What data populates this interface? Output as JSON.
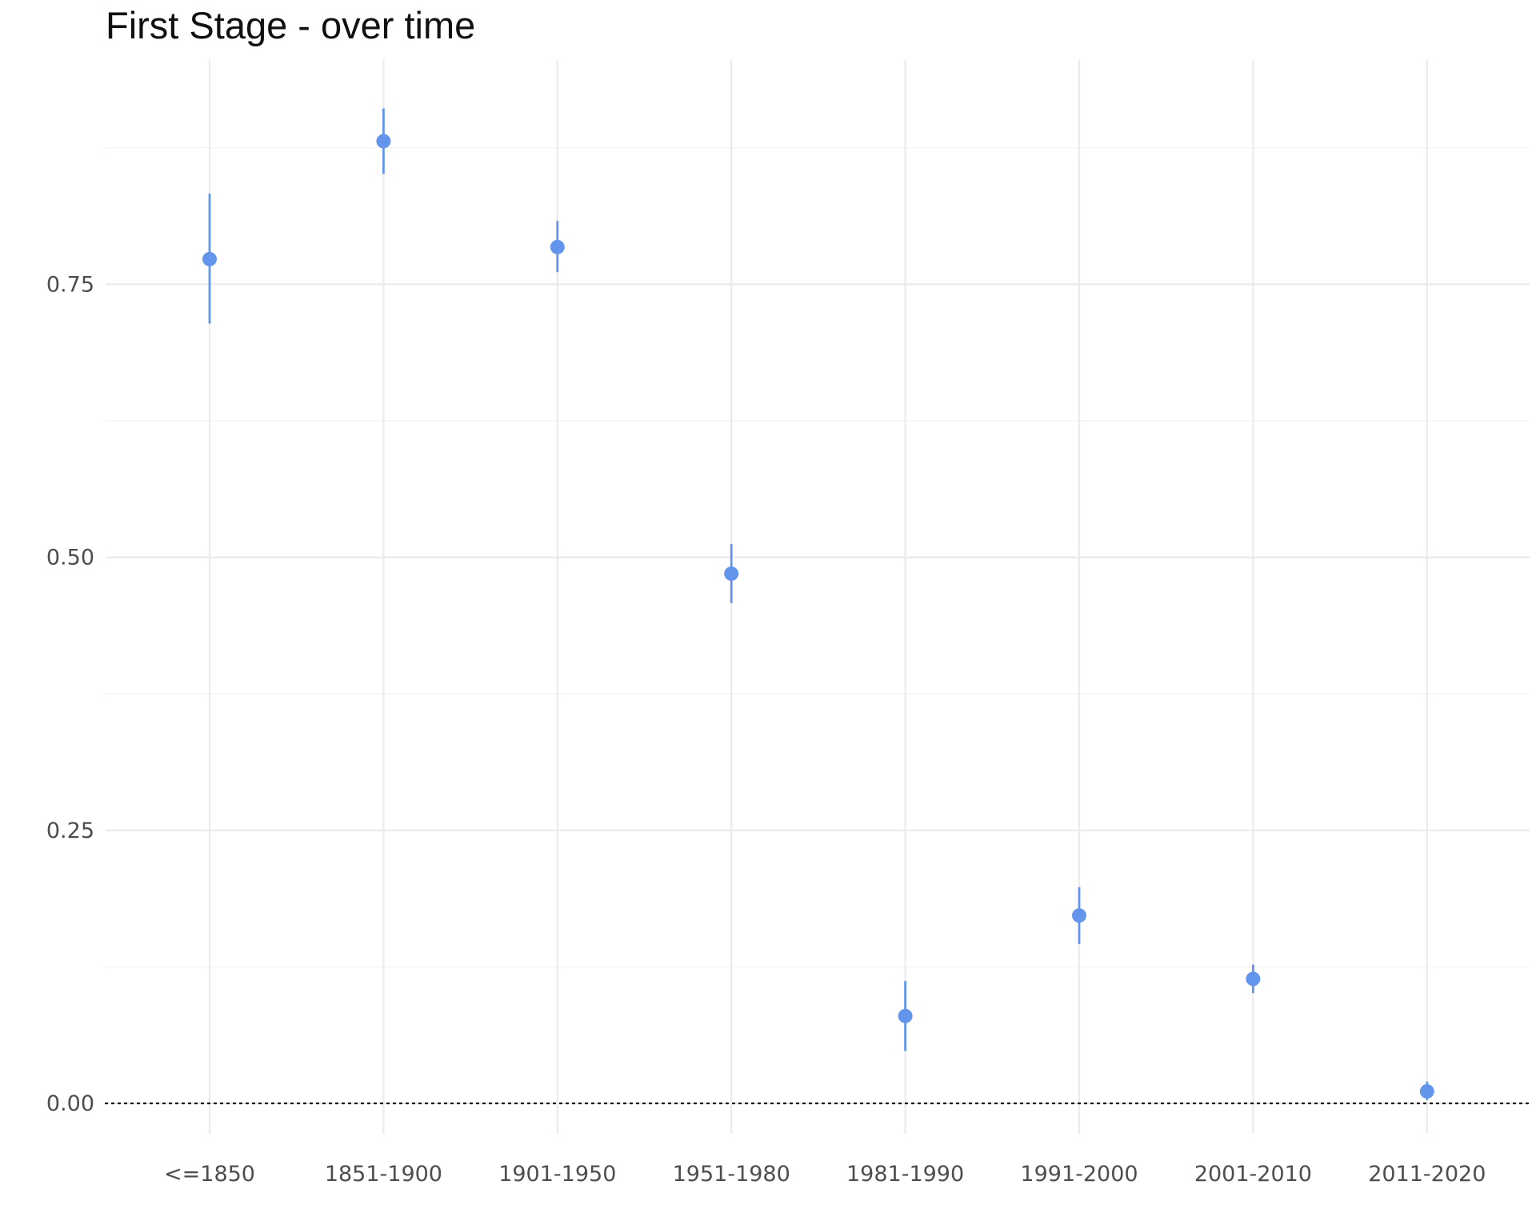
{
  "chart_data": {
    "type": "scatter",
    "title": "First Stage - over time",
    "xlabel": "",
    "ylabel": "",
    "categories": [
      "<=1850",
      "1851-1900",
      "1901-1950",
      "1951-1980",
      "1981-1990",
      "1991-2000",
      "2001-2010",
      "2011-2020"
    ],
    "series": [
      {
        "estimate": [
          0.773,
          0.881,
          0.784,
          0.485,
          0.08,
          0.172,
          0.114,
          0.011
        ],
        "ci_low": [
          0.714,
          0.851,
          0.761,
          0.458,
          0.048,
          0.146,
          0.101,
          0.003
        ],
        "ci_high": [
          0.833,
          0.911,
          0.808,
          0.512,
          0.112,
          0.198,
          0.127,
          0.02
        ]
      }
    ],
    "yticks": [
      0.0,
      0.25,
      0.5,
      0.75
    ],
    "ytick_labels": [
      "0.00",
      "0.25",
      "0.50",
      "0.75"
    ],
    "ylim": [
      -0.03,
      0.955
    ],
    "reference_line": {
      "y": 0,
      "style": "dotted",
      "color": "#000000"
    },
    "grid": true,
    "colors": {
      "point": "#6495ED",
      "grid_major": "#ebebeb",
      "grid_minor": "#f2f2f2"
    }
  }
}
